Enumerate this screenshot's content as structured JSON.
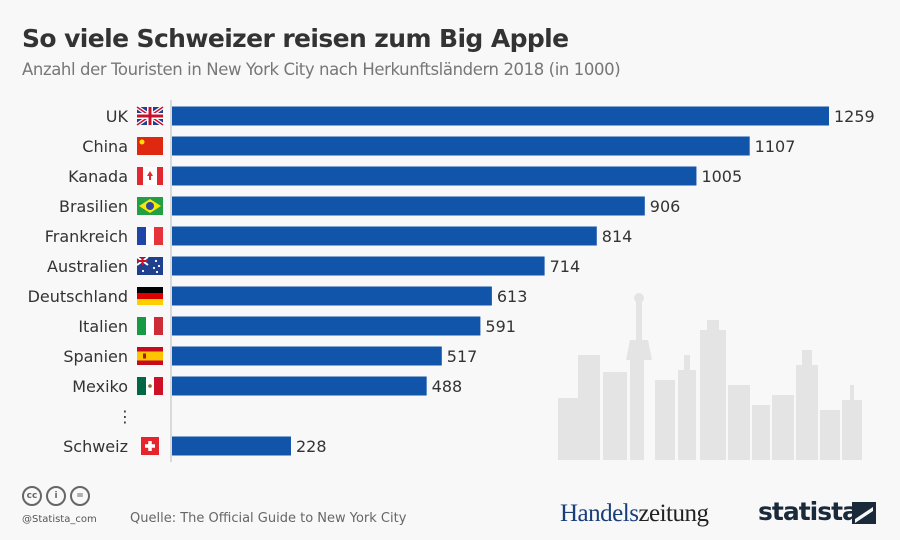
{
  "title": "So viele Schweizer reisen zum Big Apple",
  "subtitle": "Anzahl der Touristen in New York City nach Herkunftsländern 2018 (in 1000)",
  "chart_data": {
    "type": "bar",
    "orientation": "horizontal",
    "categories": [
      "UK",
      "China",
      "Kanada",
      "Brasilien",
      "Frankreich",
      "Australien",
      "Deutschland",
      "Italien",
      "Spanien",
      "Mexiko",
      "Schweiz"
    ],
    "values": [
      1259,
      1107,
      1005,
      906,
      814,
      714,
      613,
      591,
      517,
      488,
      228
    ],
    "flags": [
      "uk",
      "china",
      "canada",
      "brazil",
      "france",
      "australia",
      "germany",
      "italy",
      "spain",
      "mexico",
      "switzerland"
    ],
    "gap_marker": "⋮",
    "bar_color": "#1155aa",
    "grid": false,
    "title": "So viele Schweizer reisen zum Big Apple",
    "xlabel": "",
    "ylabel": ""
  },
  "footer": {
    "handle": "@Statista_com",
    "source": "Quelle: The Official Guide to New York City",
    "license_icons": [
      "cc",
      "by",
      "nd"
    ],
    "partner_logo": {
      "part1": "Handels",
      "part2": "zeitung"
    },
    "brand_logo": "statista"
  }
}
